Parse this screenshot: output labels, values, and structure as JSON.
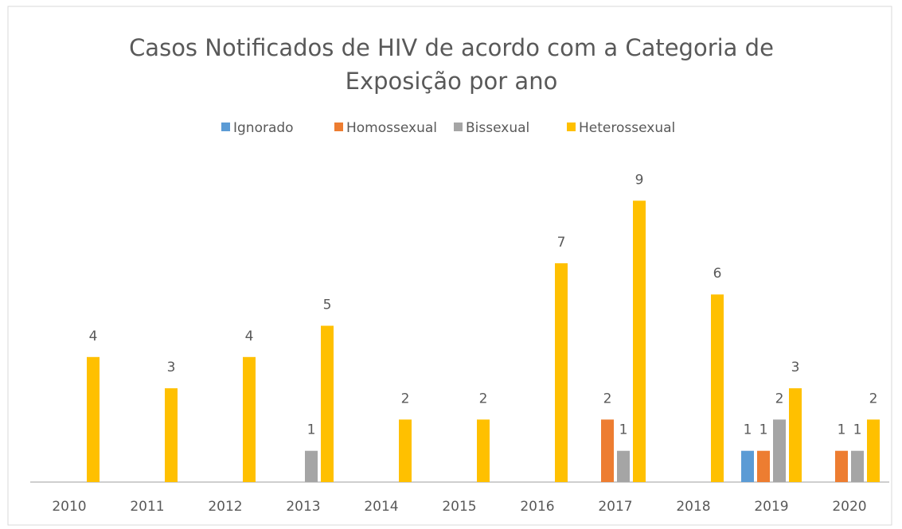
{
  "chart_data": {
    "type": "bar",
    "title": [
      "Casos Notificados de HIV de acordo com a Categoria de",
      "Exposição por ano"
    ],
    "categories": [
      "2010",
      "2011",
      "2012",
      "2013",
      "2014",
      "2015",
      "2016",
      "2017",
      "2018",
      "2019",
      "2020"
    ],
    "series": [
      {
        "name": "Ignorado",
        "color": "#5b9bd5",
        "values": [
          null,
          null,
          null,
          null,
          null,
          null,
          null,
          null,
          null,
          1,
          null
        ]
      },
      {
        "name": "Homossexual",
        "color": "#ed7d31",
        "values": [
          null,
          null,
          null,
          null,
          null,
          null,
          null,
          2,
          null,
          1,
          1
        ]
      },
      {
        "name": "Bissexual",
        "color": "#a5a5a5",
        "values": [
          null,
          null,
          null,
          1,
          null,
          null,
          null,
          1,
          null,
          2,
          1
        ]
      },
      {
        "name": "Heterossexual",
        "color": "#ffc000",
        "values": [
          4,
          3,
          4,
          5,
          2,
          2,
          7,
          9,
          6,
          3,
          2
        ]
      }
    ],
    "legend": "top"
  }
}
